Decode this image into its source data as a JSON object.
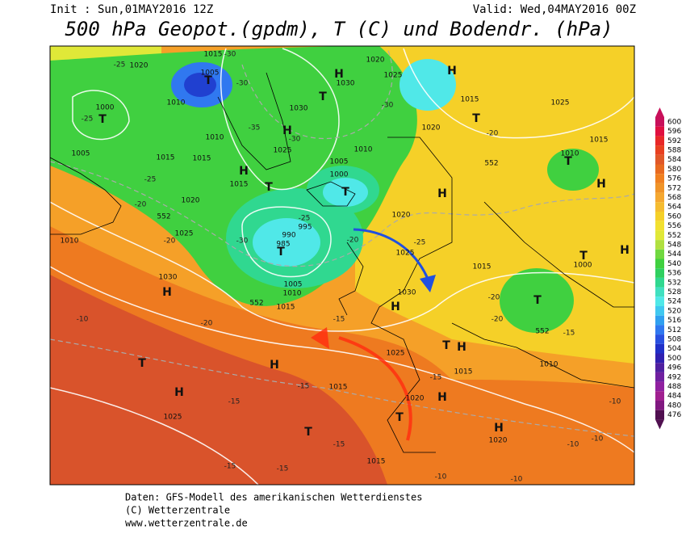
{
  "header": {
    "init": "Init : Sun,01MAY2016 12Z",
    "valid": "Valid: Wed,04MAY2016 00Z",
    "title": "500 hPa Geopot.(gpdm), T (C) und Bodendr. (hPa)"
  },
  "map": {
    "centers": [
      "H",
      "H",
      "H",
      "H",
      "H",
      "H",
      "H",
      "H",
      "H",
      "H",
      "H",
      "H",
      "H",
      "H",
      "T",
      "T",
      "T",
      "T",
      "T",
      "T",
      "T",
      "T",
      "T",
      "T",
      "T",
      "T",
      "T",
      "T"
    ],
    "pressure": [
      "1020",
      "1020",
      "1020",
      "1020",
      "1020",
      "1015",
      "1015",
      "1015",
      "1015",
      "1015",
      "1015",
      "1015",
      "1015",
      "1015",
      "1015",
      "1015",
      "1005",
      "1005",
      "1005",
      "1010",
      "1010",
      "1010",
      "1010",
      "1010",
      "1010",
      "1010",
      "1030",
      "1030",
      "1030",
      "1030",
      "1025",
      "1025",
      "1025",
      "1025",
      "1025",
      "1025",
      "1025",
      "1000",
      "1000",
      "1000",
      "995",
      "990",
      "985",
      "1020",
      "1020",
      "1005"
    ],
    "temperature": [
      "-25",
      "-30",
      "-30",
      "-35",
      "-30",
      "-25",
      "-30",
      "-25",
      "-20",
      "-20",
      "-25",
      "-20",
      "-30",
      "-25",
      "-20",
      "-20",
      "-15",
      "-15",
      "-15",
      "-20",
      "-10",
      "-15",
      "-15",
      "-10",
      "-10",
      "-10",
      "-10",
      "-15",
      "-15",
      "-10",
      "-20",
      "-15"
    ],
    "geopot": [
      "552",
      "552",
      "552",
      "552"
    ]
  },
  "colorbar": {
    "levels": [
      600,
      596,
      592,
      588,
      584,
      580,
      576,
      572,
      568,
      564,
      560,
      556,
      552,
      548,
      544,
      540,
      536,
      532,
      528,
      524,
      520,
      516,
      512,
      508,
      504,
      500,
      496,
      492,
      488,
      484,
      480,
      476
    ],
    "colors": [
      "#c8105a",
      "#e01040",
      "#e82828",
      "#e84020",
      "#e05828",
      "#e86a20",
      "#f08020",
      "#f09428",
      "#f5a830",
      "#f5bc30",
      "#f5d028",
      "#f2e030",
      "#e0e838",
      "#b0e040",
      "#70d840",
      "#40d040",
      "#30d060",
      "#30d890",
      "#40e0c0",
      "#50e8e8",
      "#40c8f0",
      "#30a0f0",
      "#3078f0",
      "#2850e0",
      "#2030c8",
      "#3020b0",
      "#5020a0",
      "#7020a0",
      "#9020a0",
      "#a02090",
      "#801880",
      "#501050"
    ]
  },
  "footer": {
    "line1": "Daten: GFS-Modell des amerikanischen Wetterdienstes",
    "line2": "(C) Wetterzentrale",
    "line3": "www.wetterzentrale.de"
  }
}
